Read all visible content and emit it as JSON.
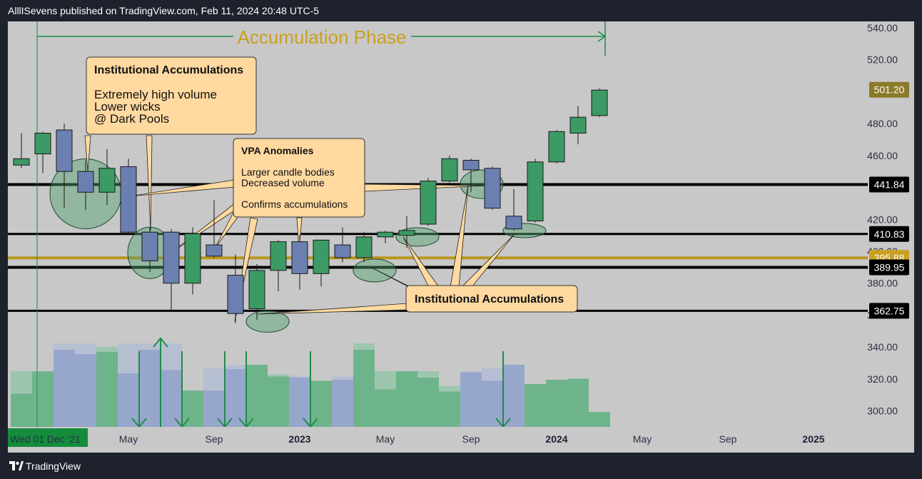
{
  "header": {
    "publish_line": "AlllISevens published on TradingView.com, Feb 11, 2024 20:48 UTC-5"
  },
  "footer": {
    "brand": "TradingView"
  },
  "colors": {
    "background": "#c8c8c8",
    "bull": "#3c9a64",
    "bear": "#6b7fb0",
    "support_line": "#000000",
    "key_level": "#b8961e",
    "accent_green": "#1e8c4a",
    "callout_fill": "#ffd9a0",
    "phase_label": "#c9a020"
  },
  "chart_data": {
    "type": "candlestick",
    "timeframe": "monthly",
    "y_axis": {
      "range": [
        290,
        544
      ],
      "ticks": [
        300,
        320,
        340,
        360,
        380,
        400,
        420,
        460,
        480,
        520,
        540
      ]
    },
    "x_axis": {
      "labels": [
        {
          "text": "Wed 01 Dec '21",
          "index": 0,
          "highlight": true
        },
        {
          "text": "May",
          "index": 5
        },
        {
          "text": "Sep",
          "index": 9
        },
        {
          "text": "2023",
          "index": 13,
          "bold": true
        },
        {
          "text": "May",
          "index": 17
        },
        {
          "text": "Sep",
          "index": 21
        },
        {
          "text": "2024",
          "index": 25,
          "bold": true
        },
        {
          "text": "May",
          "index": 29
        },
        {
          "text": "Sep",
          "index": 33
        },
        {
          "text": "2025",
          "index": 37,
          "bold": true
        }
      ]
    },
    "candles": [
      {
        "o": 454,
        "h": 474,
        "l": 452,
        "c": 458
      },
      {
        "o": 461,
        "h": 475,
        "l": 449,
        "c": 474
      },
      {
        "o": 476,
        "h": 480,
        "l": 427,
        "c": 450
      },
      {
        "o": 450,
        "h": 457,
        "l": 426,
        "c": 437
      },
      {
        "o": 437,
        "h": 464,
        "l": 429,
        "c": 452
      },
      {
        "o": 453,
        "h": 458,
        "l": 410,
        "c": 412
      },
      {
        "o": 412,
        "h": 415,
        "l": 387,
        "c": 394
      },
      {
        "o": 412,
        "h": 414,
        "l": 362,
        "c": 380
      },
      {
        "o": 380,
        "h": 415,
        "l": 373,
        "c": 411
      },
      {
        "o": 404,
        "h": 432,
        "l": 396,
        "c": 397
      },
      {
        "o": 385,
        "h": 398,
        "l": 355,
        "c": 361
      },
      {
        "o": 364,
        "h": 392,
        "l": 357,
        "c": 388
      },
      {
        "o": 388,
        "h": 407,
        "l": 375,
        "c": 406
      },
      {
        "o": 406,
        "h": 410,
        "l": 376,
        "c": 386
      },
      {
        "o": 386,
        "h": 405,
        "l": 378,
        "c": 407
      },
      {
        "o": 404,
        "h": 415,
        "l": 393,
        "c": 396
      },
      {
        "o": 396,
        "h": 412,
        "l": 393,
        "c": 409
      },
      {
        "o": 409,
        "h": 413,
        "l": 405,
        "c": 412
      },
      {
        "o": 410,
        "h": 422,
        "l": 402,
        "c": 413
      },
      {
        "o": 417,
        "h": 446,
        "l": 416,
        "c": 444
      },
      {
        "o": 444,
        "h": 460,
        "l": 443,
        "c": 458
      },
      {
        "o": 457,
        "h": 458,
        "l": 437,
        "c": 451
      },
      {
        "o": 452,
        "h": 453,
        "l": 426,
        "c": 427
      },
      {
        "o": 422,
        "h": 439,
        "l": 413,
        "c": 414
      },
      {
        "o": 419,
        "h": 458,
        "l": 418,
        "c": 456
      },
      {
        "o": 456,
        "h": 476,
        "l": 455,
        "c": 475
      },
      {
        "o": 474,
        "h": 491,
        "l": 467,
        "c": 484
      },
      {
        "o": 485,
        "h": 502,
        "l": 484,
        "c": 501
      }
    ],
    "volume_axis_max": 1.0,
    "volume": [
      0.31,
      0.52,
      0.72,
      0.68,
      0.7,
      0.5,
      0.72,
      0.53,
      0.34,
      0.34,
      0.54,
      0.58,
      0.47,
      0.46,
      0.43,
      0.44,
      0.72,
      0.35,
      0.52,
      0.46,
      0.33,
      0.51,
      0.43,
      0.58,
      0.4,
      0.44,
      0.45,
      0.14
    ],
    "volume_ghost": [
      0.52,
      0.5,
      0.78,
      0.78,
      0.75,
      0.78,
      0.78,
      0.78,
      0.33,
      0.55,
      0.58,
      0.58,
      0.49,
      0.48,
      0.43,
      0.47,
      0.78,
      0.52,
      0.52,
      0.52,
      0.38,
      0.52,
      0.55,
      0.58,
      0.4,
      0.44,
      0.45,
      0.14
    ],
    "horizontal_levels": [
      {
        "price": 441.84,
        "label": "441.84",
        "color": "#000000",
        "width": 4
      },
      {
        "price": 410.83,
        "label": "410.83",
        "color": "#000000",
        "width": 3
      },
      {
        "price": 395.88,
        "label": "395.88",
        "color": "#b8961e",
        "width": 4
      },
      {
        "price": 389.95,
        "label": "389.95",
        "color": "#000000",
        "width": 4
      },
      {
        "price": 362.75,
        "label": "362.75",
        "color": "#000000",
        "width": 3
      }
    ],
    "last_price": {
      "value": 501.2,
      "label": "501.20"
    },
    "annotations": {
      "phase_label": "Accumulation Phase",
      "phase_start_index": 1,
      "phase_end_index": 27,
      "callout_top_title": "Institutional Accumulations",
      "callout_top_lines": [
        "Extremely high volume",
        "Lower wicks",
        "@ Dark Pools"
      ],
      "callout_vpa_title": "VPA Anomalies",
      "callout_vpa_lines": [
        "Larger candle bodies",
        "Decreased volume",
        "",
        "Confirms accumulations"
      ],
      "callout_bottom_title": "Institutional Accumulations",
      "ellipses": [
        {
          "index": 3,
          "price": 436,
          "rx": 50,
          "ry": 49
        },
        {
          "index": 6,
          "price": 399,
          "rx": 31,
          "ry": 36
        },
        {
          "index": 11.5,
          "price": 356,
          "rx": 30,
          "ry": 15
        },
        {
          "index": 16.5,
          "price": 388,
          "rx": 30,
          "ry": 16
        },
        {
          "index": 18.5,
          "price": 409,
          "rx": 30,
          "ry": 13
        },
        {
          "index": 21.5,
          "price": 442,
          "rx": 30,
          "ry": 20
        },
        {
          "index": 23.5,
          "price": 413,
          "rx": 30,
          "ry": 10
        }
      ],
      "down_arrow_indices": [
        5.5,
        7.5,
        9.5,
        10.5,
        13.5,
        22.5
      ],
      "up_arrow_indices": [
        6.5
      ]
    }
  }
}
